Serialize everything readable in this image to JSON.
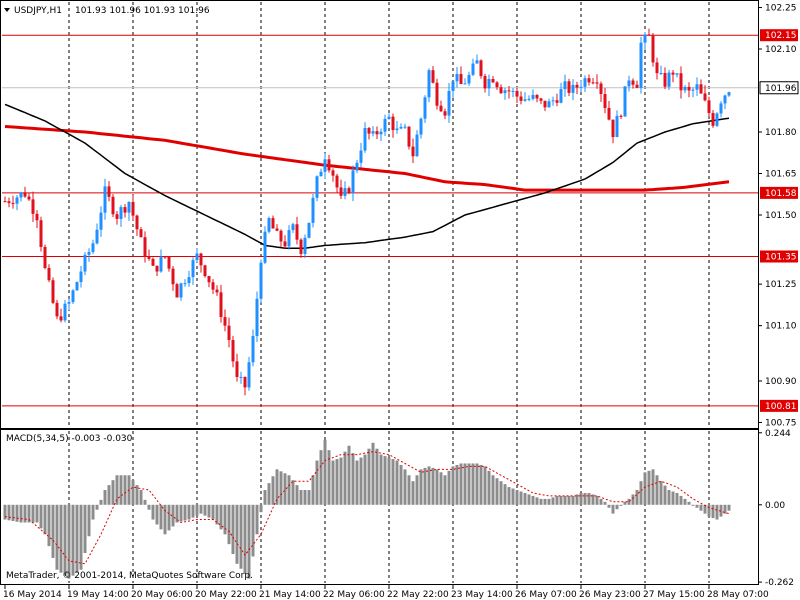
{
  "header": {
    "symbol": "USDJPY,H1",
    "ohlc": "101.93 101.96 101.93 101.96"
  },
  "indicator": {
    "title": "MACD(5,34,5) -0.003 -0.030"
  },
  "copyright": "MetaTrader, © 2001-2014, MetaQuotes Software Corp.",
  "colors": {
    "background": "#ffffff",
    "bull_candle": "#1e90ff",
    "bear_candle": "#e0101c",
    "ma_slow": "#e00000",
    "ma_fast": "#000000",
    "level_line": "#e00000",
    "level_label_bg": "#e00000",
    "price_label_bg": "#ffffff",
    "macd_hist": "#8c8c8c",
    "macd_signal": "#e00000",
    "grid": "#000000"
  },
  "chart_data": {
    "type": "candlestick",
    "price_axis": {
      "ticks": [
        "102.25",
        "102.10",
        "101.80",
        "101.65",
        "101.50",
        "101.25",
        "101.10",
        "100.90",
        "100.75"
      ],
      "tick_values": [
        102.25,
        102.1,
        101.8,
        101.65,
        101.5,
        101.25,
        101.1,
        100.9,
        100.75
      ],
      "ylim": [
        100.73,
        102.27
      ]
    },
    "time_axis": {
      "labels": [
        "16 May 2014",
        "19 May 14:00",
        "20 May 06:00",
        "20 May 22:00",
        "21 May 14:00",
        "22 May 06:00",
        "22 May 22:00",
        "23 May 14:00",
        "26 May 07:00",
        "26 May 23:00",
        "27 May 15:00",
        "28 May 07:00"
      ],
      "bars_per_label": 16,
      "total_bars": 182
    },
    "levels": [
      {
        "label": "102.15",
        "value": 102.15
      },
      {
        "label": "101.58",
        "value": 101.58
      },
      {
        "label": "101.35",
        "value": 101.35
      },
      {
        "label": "100.81",
        "value": 100.81
      }
    ],
    "current_price": {
      "label": "101.96",
      "value": 101.96
    },
    "price_path": [
      [
        0,
        101.55
      ],
      [
        5,
        101.58
      ],
      [
        8,
        101.5
      ],
      [
        10,
        101.3
      ],
      [
        13,
        101.12
      ],
      [
        16,
        101.18
      ],
      [
        19,
        101.3
      ],
      [
        22,
        101.4
      ],
      [
        25,
        101.58
      ],
      [
        28,
        101.5
      ],
      [
        31,
        101.55
      ],
      [
        34,
        101.4
      ],
      [
        37,
        101.3
      ],
      [
        40,
        101.35
      ],
      [
        43,
        101.22
      ],
      [
        46,
        101.3
      ],
      [
        48,
        101.35
      ],
      [
        50,
        101.3
      ],
      [
        53,
        101.2
      ],
      [
        56,
        101.05
      ],
      [
        58,
        100.9
      ],
      [
        60,
        100.88
      ],
      [
        62,
        101.05
      ],
      [
        64,
        101.35
      ],
      [
        66,
        101.48
      ],
      [
        68,
        101.42
      ],
      [
        70,
        101.4
      ],
      [
        72,
        101.45
      ],
      [
        74,
        101.38
      ],
      [
        76,
        101.48
      ],
      [
        78,
        101.62
      ],
      [
        80,
        101.72
      ],
      [
        82,
        101.65
      ],
      [
        84,
        101.55
      ],
      [
        86,
        101.6
      ],
      [
        88,
        101.7
      ],
      [
        90,
        101.8
      ],
      [
        92,
        101.78
      ],
      [
        94,
        101.82
      ],
      [
        96,
        101.85
      ],
      [
        98,
        101.8
      ],
      [
        100,
        101.8
      ],
      [
        102,
        101.72
      ],
      [
        104,
        101.85
      ],
      [
        106,
        102.02
      ],
      [
        108,
        101.92
      ],
      [
        110,
        101.88
      ],
      [
        112,
        102.0
      ],
      [
        114,
        101.97
      ],
      [
        116,
        102.0
      ],
      [
        118,
        102.05
      ],
      [
        120,
        101.98
      ],
      [
        122,
        102.0
      ],
      [
        124,
        101.96
      ],
      [
        126,
        101.95
      ],
      [
        128,
        101.93
      ],
      [
        130,
        101.92
      ],
      [
        132,
        101.92
      ],
      [
        134,
        101.9
      ],
      [
        136,
        101.9
      ],
      [
        138,
        101.93
      ],
      [
        140,
        101.96
      ],
      [
        142,
        101.95
      ],
      [
        144,
        101.98
      ],
      [
        146,
        102.0
      ],
      [
        148,
        102.0
      ],
      [
        150,
        101.9
      ],
      [
        152,
        101.8
      ],
      [
        154,
        101.88
      ],
      [
        156,
        102.0
      ],
      [
        158,
        101.98
      ],
      [
        159,
        102.12
      ],
      [
        161,
        102.14
      ],
      [
        163,
        102.0
      ],
      [
        165,
        101.98
      ],
      [
        167,
        102.02
      ],
      [
        169,
        101.96
      ],
      [
        171,
        101.94
      ],
      [
        173,
        101.96
      ],
      [
        175,
        101.9
      ],
      [
        177,
        101.84
      ],
      [
        179,
        101.92
      ],
      [
        181,
        101.96
      ]
    ],
    "ma_slow_path": [
      [
        0,
        101.82
      ],
      [
        20,
        101.8
      ],
      [
        40,
        101.77
      ],
      [
        60,
        101.72
      ],
      [
        80,
        101.68
      ],
      [
        100,
        101.65
      ],
      [
        110,
        101.62
      ],
      [
        120,
        101.61
      ],
      [
        130,
        101.59
      ],
      [
        140,
        101.59
      ],
      [
        150,
        101.59
      ],
      [
        160,
        101.59
      ],
      [
        170,
        101.6
      ],
      [
        181,
        101.62
      ]
    ],
    "ma_fast_path": [
      [
        0,
        101.9
      ],
      [
        10,
        101.84
      ],
      [
        20,
        101.76
      ],
      [
        30,
        101.65
      ],
      [
        40,
        101.57
      ],
      [
        50,
        101.5
      ],
      [
        60,
        101.43
      ],
      [
        65,
        101.39
      ],
      [
        70,
        101.38
      ],
      [
        75,
        101.38
      ],
      [
        80,
        101.39
      ],
      [
        90,
        101.4
      ],
      [
        100,
        101.42
      ],
      [
        107,
        101.44
      ],
      [
        115,
        101.5
      ],
      [
        125,
        101.54
      ],
      [
        135,
        101.58
      ],
      [
        145,
        101.63
      ],
      [
        152,
        101.69
      ],
      [
        158,
        101.76
      ],
      [
        165,
        101.8
      ],
      [
        172,
        101.83
      ],
      [
        181,
        101.85
      ]
    ],
    "macd": {
      "axis_ticks": [
        "0.244",
        "0.00",
        "-0.262"
      ],
      "ylim": [
        -0.265,
        0.25
      ],
      "hist_path": [
        [
          0,
          -0.05
        ],
        [
          4,
          -0.06
        ],
        [
          8,
          -0.06
        ],
        [
          10,
          -0.1
        ],
        [
          13,
          -0.22
        ],
        [
          16,
          -0.25
        ],
        [
          19,
          -0.22
        ],
        [
          22,
          -0.05
        ],
        [
          25,
          0.05
        ],
        [
          28,
          0.1
        ],
        [
          31,
          0.1
        ],
        [
          34,
          0.05
        ],
        [
          37,
          -0.05
        ],
        [
          40,
          -0.1
        ],
        [
          43,
          -0.06
        ],
        [
          46,
          -0.05
        ],
        [
          49,
          -0.03
        ],
        [
          52,
          -0.05
        ],
        [
          55,
          -0.1
        ],
        [
          58,
          -0.2
        ],
        [
          61,
          -0.25
        ],
        [
          63,
          -0.1
        ],
        [
          65,
          0.05
        ],
        [
          68,
          0.12
        ],
        [
          71,
          0.1
        ],
        [
          74,
          0.05
        ],
        [
          76,
          0.05
        ],
        [
          78,
          0.15
        ],
        [
          80,
          0.22
        ],
        [
          82,
          0.15
        ],
        [
          84,
          0.16
        ],
        [
          86,
          0.2
        ],
        [
          88,
          0.15
        ],
        [
          90,
          0.17
        ],
        [
          92,
          0.21
        ],
        [
          94,
          0.17
        ],
        [
          96,
          0.16
        ],
        [
          98,
          0.15
        ],
        [
          100,
          0.12
        ],
        [
          102,
          0.08
        ],
        [
          104,
          0.12
        ],
        [
          106,
          0.13
        ],
        [
          108,
          0.12
        ],
        [
          110,
          0.1
        ],
        [
          112,
          0.13
        ],
        [
          114,
          0.14
        ],
        [
          116,
          0.14
        ],
        [
          118,
          0.14
        ],
        [
          120,
          0.13
        ],
        [
          122,
          0.1
        ],
        [
          124,
          0.08
        ],
        [
          126,
          0.06
        ],
        [
          128,
          0.05
        ],
        [
          130,
          0.04
        ],
        [
          132,
          0.03
        ],
        [
          134,
          0.02
        ],
        [
          136,
          0.02
        ],
        [
          138,
          0.03
        ],
        [
          140,
          0.03
        ],
        [
          142,
          0.03
        ],
        [
          144,
          0.04
        ],
        [
          146,
          0.04
        ],
        [
          148,
          0.03
        ],
        [
          150,
          0.01
        ],
        [
          152,
          -0.03
        ],
        [
          154,
          0.0
        ],
        [
          156,
          0.02
        ],
        [
          158,
          0.05
        ],
        [
          160,
          0.11
        ],
        [
          162,
          0.12
        ],
        [
          164,
          0.08
        ],
        [
          166,
          0.05
        ],
        [
          168,
          0.04
        ],
        [
          170,
          0.02
        ],
        [
          172,
          0.0
        ],
        [
          174,
          -0.02
        ],
        [
          176,
          -0.04
        ],
        [
          178,
          -0.05
        ],
        [
          180,
          -0.03
        ],
        [
          181,
          -0.02
        ]
      ],
      "signal_path": [
        [
          0,
          -0.04
        ],
        [
          6,
          -0.05
        ],
        [
          12,
          -0.12
        ],
        [
          16,
          -0.19
        ],
        [
          20,
          -0.2
        ],
        [
          24,
          -0.1
        ],
        [
          28,
          0.02
        ],
        [
          32,
          0.06
        ],
        [
          36,
          0.05
        ],
        [
          40,
          -0.02
        ],
        [
          44,
          -0.06
        ],
        [
          48,
          -0.05
        ],
        [
          52,
          -0.05
        ],
        [
          56,
          -0.09
        ],
        [
          60,
          -0.17
        ],
        [
          64,
          -0.1
        ],
        [
          68,
          0.02
        ],
        [
          72,
          0.08
        ],
        [
          76,
          0.08
        ],
        [
          80,
          0.15
        ],
        [
          84,
          0.17
        ],
        [
          88,
          0.17
        ],
        [
          92,
          0.18
        ],
        [
          96,
          0.17
        ],
        [
          100,
          0.14
        ],
        [
          104,
          0.11
        ],
        [
          108,
          0.12
        ],
        [
          112,
          0.12
        ],
        [
          116,
          0.13
        ],
        [
          120,
          0.13
        ],
        [
          124,
          0.1
        ],
        [
          128,
          0.07
        ],
        [
          132,
          0.04
        ],
        [
          136,
          0.03
        ],
        [
          140,
          0.03
        ],
        [
          144,
          0.03
        ],
        [
          148,
          0.03
        ],
        [
          152,
          0.01
        ],
        [
          156,
          0.01
        ],
        [
          160,
          0.06
        ],
        [
          164,
          0.08
        ],
        [
          168,
          0.06
        ],
        [
          172,
          0.02
        ],
        [
          176,
          -0.01
        ],
        [
          181,
          -0.03
        ]
      ]
    }
  }
}
